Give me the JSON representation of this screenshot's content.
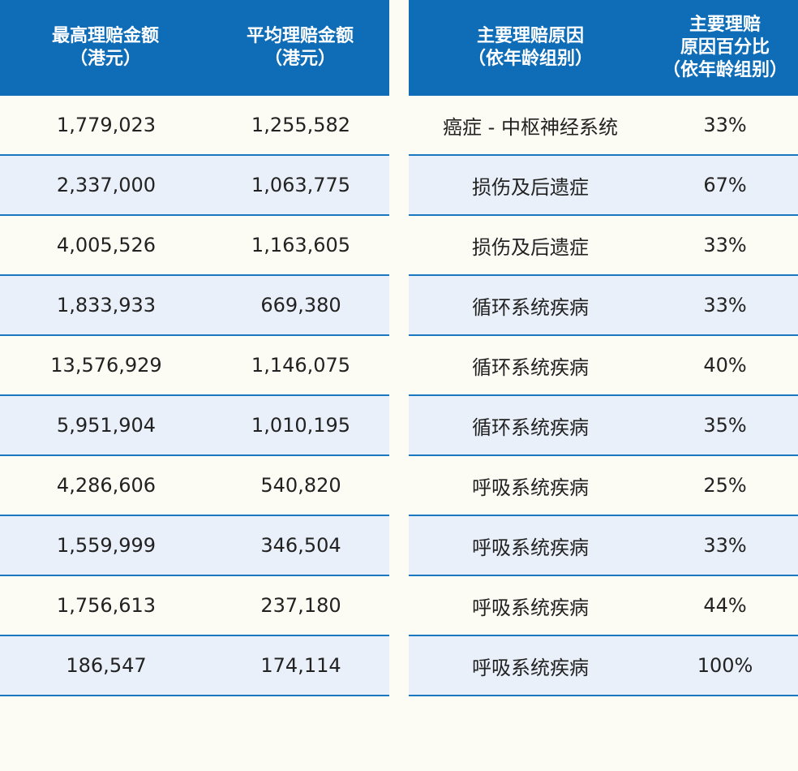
{
  "left_table": {
    "headers": [
      "最高理赔金额\n（港元）",
      "平均理赔金额\n（港元）"
    ],
    "rows": [
      [
        "1,779,023",
        "1,255,582"
      ],
      [
        "2,337,000",
        "1,063,775"
      ],
      [
        "4,005,526",
        "1,163,605"
      ],
      [
        "1,833,933",
        "669,380"
      ],
      [
        "13,576,929",
        "1,146,075"
      ],
      [
        "5,951,904",
        "1,010,195"
      ],
      [
        "4,286,606",
        "540,820"
      ],
      [
        "1,559,999",
        "346,504"
      ],
      [
        "1,756,613",
        "237,180"
      ],
      [
        "186,547",
        "174,114"
      ]
    ]
  },
  "right_table": {
    "headers": [
      "主要理赔原因\n（依年龄组别）",
      "主要理赔\n原因百分比\n（依年龄组别）"
    ],
    "rows": [
      [
        "癌症 - 中枢神经系统",
        "33%"
      ],
      [
        "损伤及后遗症",
        "67%"
      ],
      [
        "损伤及后遗症",
        "33%"
      ],
      [
        "循环系统疾病",
        "33%"
      ],
      [
        "循环系统疾病",
        "40%"
      ],
      [
        "循环系统疾病",
        "35%"
      ],
      [
        "呼吸系统疾病",
        "25%"
      ],
      [
        "呼吸系统疾病",
        "33%"
      ],
      [
        "呼吸系统疾病",
        "44%"
      ],
      [
        "呼吸系统疾病",
        "100%"
      ]
    ]
  },
  "colors": {
    "header_bg": "#0f6db7",
    "header_text": "#ffffff",
    "row_odd": "#fdfcf4",
    "row_even": "#e9f0fa",
    "divider": "#1a78c0"
  }
}
